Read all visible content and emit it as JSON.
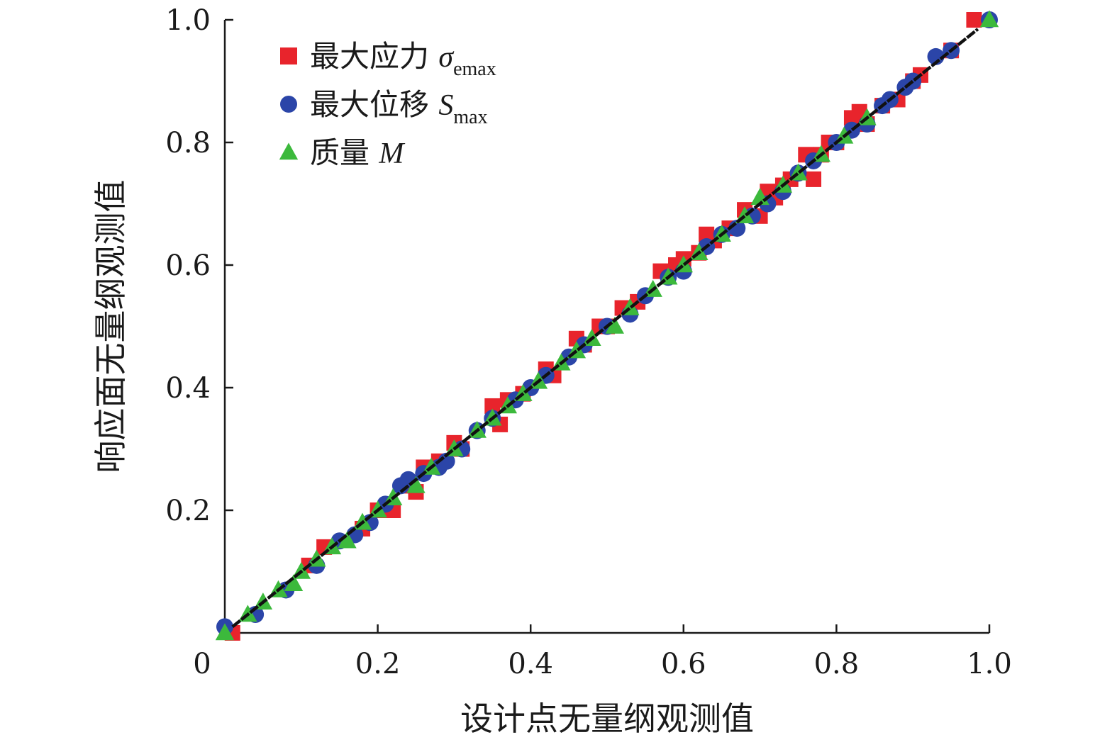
{
  "chart_data": {
    "type": "scatter",
    "title": "",
    "xlabel": "设计点无量纲观测值",
    "ylabel": "响应面无量纲观测值",
    "xlim": [
      0,
      1.0
    ],
    "ylim": [
      0,
      1.0
    ],
    "x_ticks": [
      {
        "value": 0,
        "label": "0"
      },
      {
        "value": 0.2,
        "label": "0.2"
      },
      {
        "value": 0.4,
        "label": "0.4"
      },
      {
        "value": 0.6,
        "label": "0.6"
      },
      {
        "value": 0.8,
        "label": "0.8"
      },
      {
        "value": 1.0,
        "label": "1.0"
      }
    ],
    "y_ticks": [
      {
        "value": 0.2,
        "label": "0.2"
      },
      {
        "value": 0.4,
        "label": "0.4"
      },
      {
        "value": 0.6,
        "label": "0.6"
      },
      {
        "value": 0.8,
        "label": "0.8"
      },
      {
        "value": 1.0,
        "label": "1.0"
      }
    ],
    "grid": false,
    "legend_position": "top-left",
    "fit_line": {
      "x": [
        0.01,
        0.985
      ],
      "y": [
        0.01,
        0.985
      ],
      "color": "#111111"
    },
    "series": [
      {
        "name": "最大应力 σemax",
        "legend_prefix": "最大应力 ",
        "legend_symbol": "σ",
        "legend_subscript": "emax",
        "marker": "square",
        "color": "#e8242c",
        "x": [
          0.01,
          0.11,
          0.13,
          0.18,
          0.2,
          0.22,
          0.24,
          0.25,
          0.26,
          0.28,
          0.3,
          0.31,
          0.35,
          0.36,
          0.37,
          0.39,
          0.42,
          0.43,
          0.46,
          0.47,
          0.49,
          0.5,
          0.52,
          0.54,
          0.57,
          0.59,
          0.6,
          0.62,
          0.63,
          0.64,
          0.66,
          0.68,
          0.7,
          0.71,
          0.72,
          0.73,
          0.74,
          0.76,
          0.77,
          0.78,
          0.79,
          0.8,
          0.82,
          0.83,
          0.84,
          0.86,
          0.88,
          0.9,
          0.91,
          0.95,
          0.98
        ],
        "y": [
          0.0,
          0.11,
          0.14,
          0.17,
          0.2,
          0.2,
          0.24,
          0.23,
          0.27,
          0.28,
          0.31,
          0.3,
          0.37,
          0.34,
          0.38,
          0.39,
          0.43,
          0.42,
          0.48,
          0.47,
          0.5,
          0.5,
          0.53,
          0.54,
          0.59,
          0.6,
          0.61,
          0.62,
          0.65,
          0.64,
          0.66,
          0.69,
          0.68,
          0.72,
          0.71,
          0.73,
          0.74,
          0.78,
          0.74,
          0.78,
          0.8,
          0.8,
          0.84,
          0.85,
          0.83,
          0.86,
          0.87,
          0.9,
          0.91,
          0.95,
          1.0
        ]
      },
      {
        "name": "最大位移 Smax",
        "legend_prefix": "最大位移 ",
        "legend_symbol": "S",
        "legend_subscript": "max",
        "marker": "circle",
        "color": "#2b45a8",
        "x": [
          0.0,
          0.04,
          0.08,
          0.12,
          0.15,
          0.17,
          0.19,
          0.21,
          0.23,
          0.24,
          0.26,
          0.28,
          0.29,
          0.31,
          0.33,
          0.35,
          0.38,
          0.4,
          0.42,
          0.45,
          0.47,
          0.5,
          0.53,
          0.55,
          0.58,
          0.6,
          0.63,
          0.65,
          0.67,
          0.69,
          0.71,
          0.73,
          0.75,
          0.77,
          0.8,
          0.82,
          0.84,
          0.86,
          0.87,
          0.89,
          0.9,
          0.93,
          0.95,
          1.0
        ],
        "y": [
          0.01,
          0.03,
          0.07,
          0.11,
          0.15,
          0.16,
          0.18,
          0.21,
          0.24,
          0.25,
          0.26,
          0.27,
          0.28,
          0.3,
          0.33,
          0.35,
          0.38,
          0.4,
          0.42,
          0.45,
          0.47,
          0.5,
          0.52,
          0.55,
          0.58,
          0.59,
          0.63,
          0.65,
          0.66,
          0.68,
          0.7,
          0.72,
          0.75,
          0.77,
          0.8,
          0.82,
          0.83,
          0.86,
          0.87,
          0.89,
          0.9,
          0.94,
          0.95,
          1.0
        ]
      },
      {
        "name": "质量 M",
        "legend_prefix": "质量 ",
        "legend_symbol": "M",
        "legend_subscript": "",
        "marker": "triangle",
        "color": "#3cb93c",
        "x": [
          0.0,
          0.03,
          0.05,
          0.07,
          0.09,
          0.1,
          0.12,
          0.14,
          0.16,
          0.18,
          0.2,
          0.22,
          0.25,
          0.27,
          0.3,
          0.33,
          0.35,
          0.37,
          0.39,
          0.41,
          0.44,
          0.46,
          0.48,
          0.51,
          0.53,
          0.56,
          0.58,
          0.6,
          0.62,
          0.65,
          0.68,
          0.7,
          0.73,
          0.75,
          0.78,
          0.81,
          0.84,
          1.0
        ],
        "y": [
          0.0,
          0.03,
          0.05,
          0.07,
          0.08,
          0.1,
          0.12,
          0.14,
          0.15,
          0.18,
          0.2,
          0.22,
          0.24,
          0.27,
          0.3,
          0.33,
          0.35,
          0.37,
          0.39,
          0.41,
          0.44,
          0.46,
          0.48,
          0.5,
          0.53,
          0.56,
          0.58,
          0.6,
          0.62,
          0.65,
          0.68,
          0.71,
          0.73,
          0.75,
          0.78,
          0.81,
          0.84,
          1.0
        ]
      }
    ]
  }
}
